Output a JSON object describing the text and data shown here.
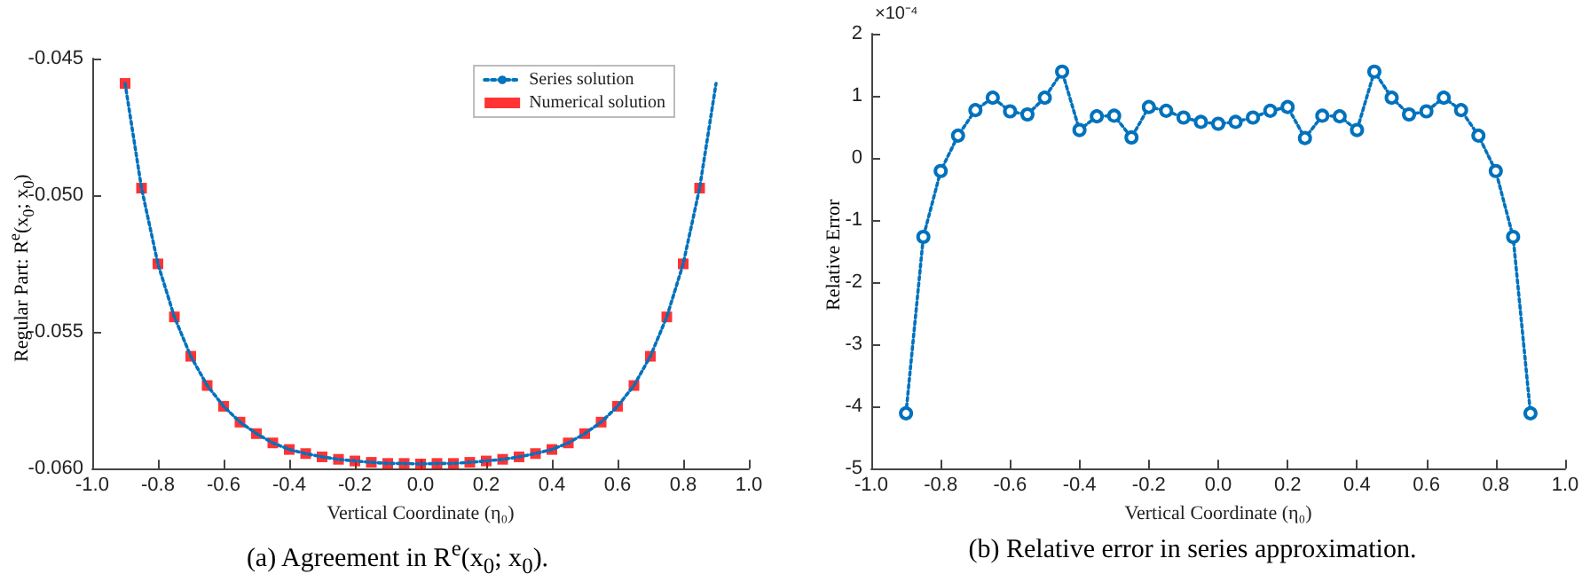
{
  "chart_data": [
    {
      "type": "line",
      "title": "(a) Agreement in R$^{e}$(x$_{0}$; x$_{0}$).",
      "xlabel": "Vertical Coordinate (η₀)",
      "ylabel": "Regular Part: R$^{e}$(x$_{0}$; x$_{0}$)",
      "x": [
        -0.9,
        -0.85,
        -0.8,
        -0.75,
        -0.7,
        -0.65,
        -0.6,
        -0.55,
        -0.5,
        -0.45,
        -0.4,
        -0.35,
        -0.3,
        -0.25,
        -0.2,
        -0.15,
        -0.1,
        -0.05,
        0,
        0.05,
        0.1,
        0.15,
        0.2,
        0.25,
        0.3,
        0.35,
        0.4,
        0.45,
        0.5,
        0.55,
        0.6,
        0.65,
        0.7,
        0.75,
        0.8,
        0.85,
        0.9
      ],
      "series": [
        {
          "name": "Series solution",
          "color": "#0072bd",
          "marker": "none",
          "line_style": "dotted",
          "values": [
            -0.04591,
            -0.04974,
            -0.05251,
            -0.05445,
            -0.05589,
            -0.05696,
            -0.05772,
            -0.0583,
            -0.05872,
            -0.05906,
            -0.0593,
            -0.05945,
            -0.05957,
            -0.05966,
            -0.05972,
            -0.05977,
            -0.05981,
            -0.05981,
            -0.05983,
            -0.05981,
            -0.05981,
            -0.05977,
            -0.05972,
            -0.05966,
            -0.05957,
            -0.05945,
            -0.0593,
            -0.05906,
            -0.05872,
            -0.0583,
            -0.05772,
            -0.05696,
            -0.05589,
            -0.05445,
            -0.05251,
            -0.04974,
            -0.04591
          ]
        },
        {
          "name": "Numerical solution",
          "type": "scatter",
          "color": "#ff0000",
          "marker": "square",
          "values": [
            -0.04591,
            -0.04974,
            -0.05251,
            -0.05445,
            -0.05589,
            -0.05696,
            -0.05772,
            -0.0583,
            -0.05872,
            -0.05906,
            -0.0593,
            -0.05945,
            -0.05957,
            -0.05966,
            -0.05972,
            -0.05977,
            -0.05981,
            -0.05981,
            -0.05983,
            -0.05981,
            -0.05981,
            -0.05977,
            -0.05972,
            -0.05966,
            -0.05957,
            -0.05945,
            -0.0593,
            -0.05906,
            -0.05872,
            -0.0583,
            -0.05772,
            -0.05696,
            -0.05589,
            -0.05445,
            -0.05251,
            -0.04974,
            null
          ]
        }
      ],
      "xlim": [
        -1,
        1
      ],
      "xticks": [
        {
          "value": -1,
          "label": "-1.0"
        },
        {
          "value": -0.8,
          "label": "-0.8"
        },
        {
          "value": -0.6,
          "label": "-0.6"
        },
        {
          "value": -0.4,
          "label": "-0.4"
        },
        {
          "value": -0.2,
          "label": "-0.2"
        },
        {
          "value": 0,
          "label": "0.0"
        },
        {
          "value": 0.2,
          "label": "0.2"
        },
        {
          "value": 0.4,
          "label": "0.4"
        },
        {
          "value": 0.6,
          "label": "0.6"
        },
        {
          "value": 0.8,
          "label": "0.8"
        },
        {
          "value": 1,
          "label": "1.0"
        }
      ],
      "ylim": [
        -0.06,
        -0.045
      ],
      "yticks": [
        {
          "value": -0.06,
          "label": "-0.060"
        },
        {
          "value": -0.055,
          "label": "-0.055"
        },
        {
          "value": -0.05,
          "label": "-0.050"
        },
        {
          "value": -0.045,
          "label": "-0.045"
        }
      ],
      "legend": "top right"
    },
    {
      "type": "line",
      "title": "(b) Relative error in series approximation.",
      "xlabel": "Vertical Coordinate (η₀)",
      "ylabel": "Relative Error",
      "annotations": [
        "×10⁻⁴"
      ],
      "x": [
        -0.9,
        -0.85,
        -0.8,
        -0.75,
        -0.7,
        -0.65,
        -0.6,
        -0.55,
        -0.5,
        -0.45,
        -0.4,
        -0.35,
        -0.3,
        -0.25,
        -0.2,
        -0.15,
        -0.1,
        -0.05,
        0,
        0.05,
        0.1,
        0.15,
        0.2,
        0.25,
        0.3,
        0.35,
        0.4,
        0.45,
        0.5,
        0.55,
        0.6,
        0.65,
        0.7,
        0.75,
        0.8,
        0.85,
        0.9
      ],
      "series": [
        {
          "color": "#0072bd",
          "values": [
            -4.11,
            -1.27,
            -0.21,
            0.36,
            0.77,
            0.97,
            0.75,
            0.7,
            0.97,
            1.39,
            0.45,
            0.67,
            0.68,
            0.33,
            0.82,
            0.76,
            0.65,
            0.58,
            0.55,
            0.58,
            0.65,
            0.76,
            0.82,
            0.32,
            0.68,
            0.67,
            0.45,
            1.39,
            0.97,
            0.7,
            0.75,
            0.97,
            0.77,
            0.36,
            -0.21,
            -1.27,
            -4.11
          ]
        }
      ],
      "marker": "circle",
      "line_style": "dotted",
      "xlim": [
        -1,
        1
      ],
      "xticks": [
        {
          "value": -1,
          "label": "-1.0"
        },
        {
          "value": -0.8,
          "label": "-0.8"
        },
        {
          "value": -0.6,
          "label": "-0.6"
        },
        {
          "value": -0.4,
          "label": "-0.4"
        },
        {
          "value": -0.2,
          "label": "-0.2"
        },
        {
          "value": 0,
          "label": "0.0"
        },
        {
          "value": 0.2,
          "label": "0.2"
        },
        {
          "value": 0.4,
          "label": "0.4"
        },
        {
          "value": 0.6,
          "label": "0.6"
        },
        {
          "value": 0.8,
          "label": "0.8"
        },
        {
          "value": 1,
          "label": "1.0"
        }
      ],
      "ylim": [
        -5,
        2
      ],
      "yticks": [
        -5,
        -4,
        -3,
        -2,
        -1,
        0,
        1,
        2
      ]
    }
  ]
}
